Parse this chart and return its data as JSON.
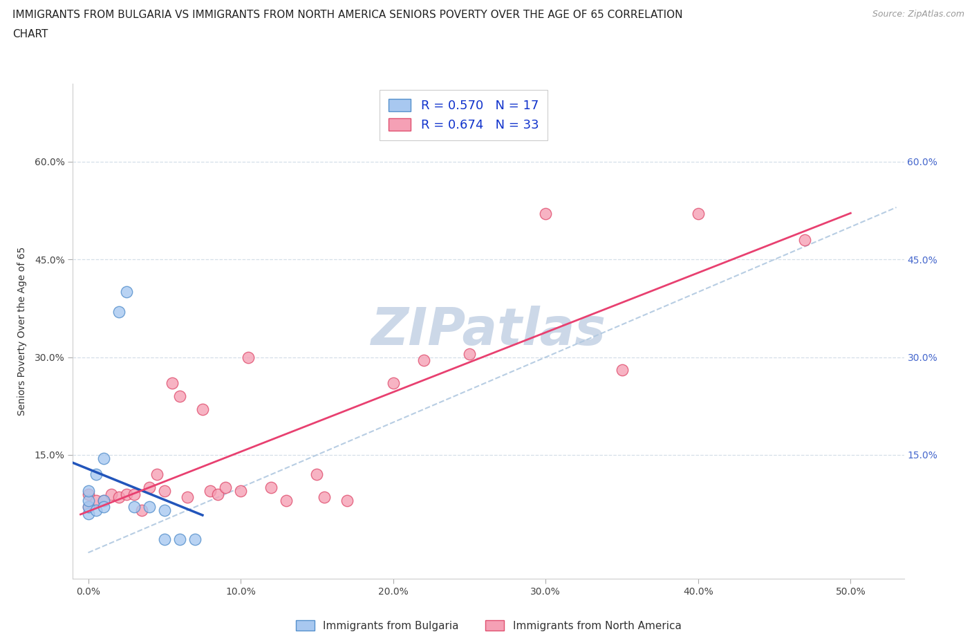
{
  "title_line1": "IMMIGRANTS FROM BULGARIA VS IMMIGRANTS FROM NORTH AMERICA SENIORS POVERTY OVER THE AGE OF 65 CORRELATION",
  "title_line2": "CHART",
  "source_text": "Source: ZipAtlas.com",
  "ylabel": "Seniors Poverty Over the Age of 65",
  "x_tick_labels": [
    "0.0%",
    "10.0%",
    "20.0%",
    "30.0%",
    "40.0%",
    "50.0%"
  ],
  "x_tick_values": [
    0.0,
    0.1,
    0.2,
    0.3,
    0.4,
    0.5
  ],
  "y_tick_labels": [
    "15.0%",
    "30.0%",
    "45.0%",
    "60.0%"
  ],
  "y_tick_values": [
    0.15,
    0.3,
    0.45,
    0.6
  ],
  "xlim": [
    -0.01,
    0.535
  ],
  "ylim": [
    -0.04,
    0.72
  ],
  "bulgaria_fill": "#a8c8f0",
  "bulgaria_edge": "#5590cc",
  "north_america_fill": "#f5a0b5",
  "north_america_edge": "#e05070",
  "bulgaria_line_color": "#2255bb",
  "north_america_line_color": "#e84070",
  "diagonal_color": "#b0c8e0",
  "watermark_color": "#ccd8e8",
  "R_bulgaria": 0.57,
  "N_bulgaria": 17,
  "R_north_america": 0.674,
  "N_north_america": 33,
  "bulgaria_x": [
    0.0,
    0.0,
    0.0,
    0.0,
    0.005,
    0.005,
    0.01,
    0.01,
    0.01,
    0.02,
    0.025,
    0.03,
    0.04,
    0.05,
    0.05,
    0.06,
    0.07
  ],
  "bulgaria_y": [
    0.06,
    0.07,
    0.08,
    0.095,
    0.065,
    0.12,
    0.08,
    0.07,
    0.145,
    0.37,
    0.4,
    0.07,
    0.07,
    0.02,
    0.065,
    0.02,
    0.02
  ],
  "north_america_x": [
    0.0,
    0.0,
    0.005,
    0.01,
    0.015,
    0.02,
    0.025,
    0.03,
    0.035,
    0.04,
    0.045,
    0.05,
    0.055,
    0.06,
    0.065,
    0.075,
    0.08,
    0.085,
    0.09,
    0.1,
    0.105,
    0.12,
    0.13,
    0.15,
    0.155,
    0.17,
    0.2,
    0.22,
    0.25,
    0.3,
    0.35,
    0.4,
    0.47
  ],
  "north_america_y": [
    0.07,
    0.09,
    0.08,
    0.08,
    0.09,
    0.085,
    0.09,
    0.09,
    0.065,
    0.1,
    0.12,
    0.095,
    0.26,
    0.24,
    0.085,
    0.22,
    0.095,
    0.09,
    0.1,
    0.095,
    0.3,
    0.1,
    0.08,
    0.12,
    0.085,
    0.08,
    0.26,
    0.295,
    0.305,
    0.52,
    0.28,
    0.52,
    0.48
  ],
  "legend_label_bulgaria": "Immigrants from Bulgaria",
  "legend_label_north_america": "Immigrants from North America",
  "marker_size": 140,
  "title_fontsize": 11,
  "axis_label_fontsize": 10,
  "tick_fontsize": 10,
  "legend_fontsize": 12,
  "source_fontsize": 9
}
